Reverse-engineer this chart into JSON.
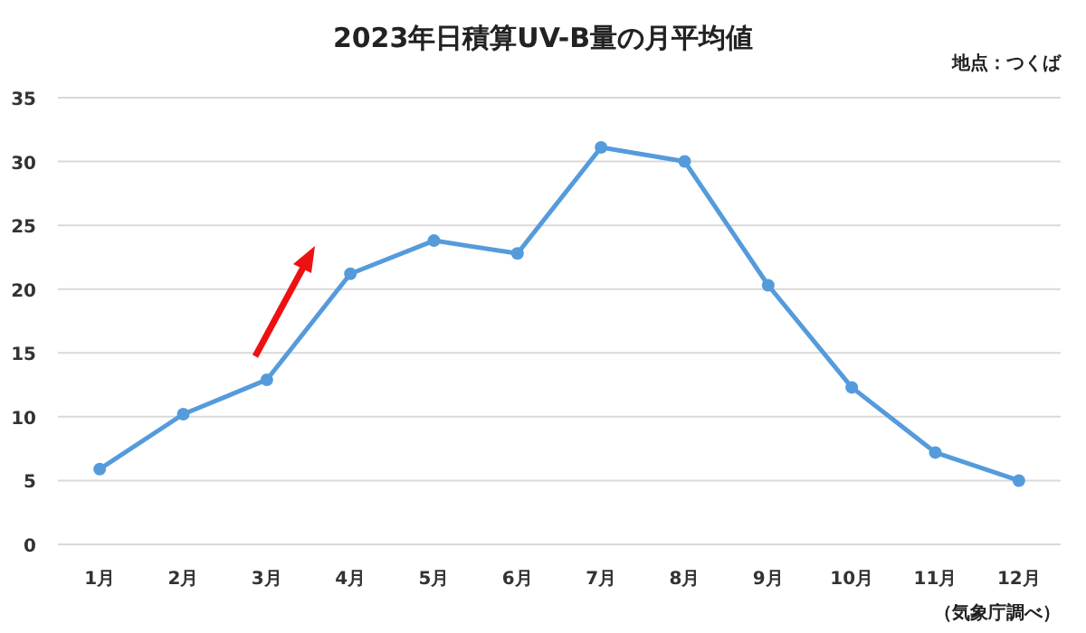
{
  "chart_data": {
    "type": "line",
    "title": "2023年日積算UV-B量の月平均値",
    "annotations": [
      "地点：つくば",
      "（気象庁調べ）"
    ],
    "categories": [
      "1月",
      "2月",
      "3月",
      "4月",
      "5月",
      "6月",
      "7月",
      "8月",
      "9月",
      "10月",
      "11月",
      "12月"
    ],
    "series": [
      {
        "color": "#559bdc",
        "values": [
          5.9,
          10.2,
          12.9,
          21.2,
          23.8,
          22.8,
          31.1,
          30.0,
          20.3,
          12.3,
          7.2,
          5.0
        ]
      }
    ],
    "ylim": [
      0,
      35
    ],
    "yticks": [
      0,
      5,
      10,
      15,
      20,
      25,
      30,
      35
    ],
    "grid": "y",
    "marker": "circle",
    "line_style": "solid"
  }
}
